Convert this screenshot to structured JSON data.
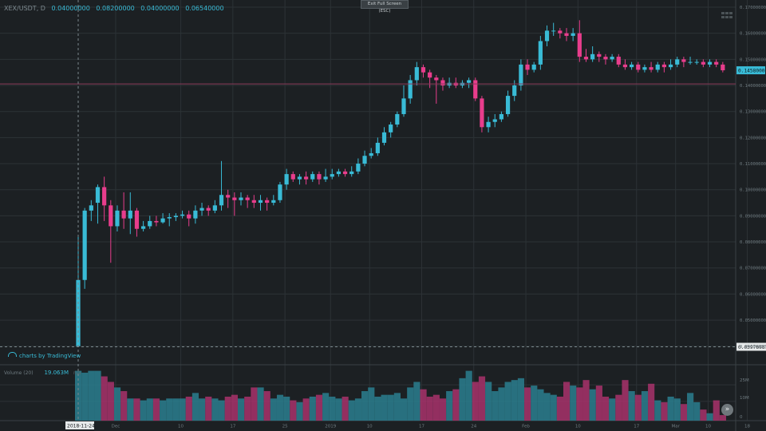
{
  "header": {
    "symbol": "XEX/USDT, D",
    "open": "0.04000000",
    "high": "0.08200000",
    "low": "0.04000000",
    "close": "0.06540000"
  },
  "toolbar": {
    "exit_fullscreen_label": "Exit Full Screen (ESC)"
  },
  "attribution": {
    "text": "charts by TradingView"
  },
  "volume": {
    "label": "Volume (20)",
    "value": "19.063M",
    "na": "n/a"
  },
  "colors": {
    "up": "#39bbd6",
    "down": "#e83d8c",
    "background": "#1c2023",
    "grid": "#2c3236"
  },
  "chart_data": {
    "type": "candlestick",
    "y_ticks": [
      "0.17000000",
      "0.16000000",
      "0.15000000",
      "0.14000000",
      "0.13000000",
      "0.12000000",
      "0.11000000",
      "0.10000000",
      "0.09000000",
      "0.08000000",
      "0.07000000",
      "0.06000000",
      "0.05000000",
      "0.04000000"
    ],
    "ylim": [
      0.0387,
      0.17
    ],
    "x_ticks": [
      "Dec",
      "10",
      "17",
      "25",
      "2019",
      "10",
      "17",
      "24",
      "Feb",
      "10",
      "17",
      "Mar",
      "10",
      "18"
    ],
    "volume_ticks": [
      "25M",
      "10M",
      "0"
    ],
    "last_price_label": "0.14580000",
    "crosshair_price_label": "0.03976987",
    "crosshair_date_label": "2018-11-24",
    "candles": [
      [
        0.04,
        0.0654,
        0.04,
        0.082
      ],
      [
        0.0654,
        0.092,
        0.062,
        0.093
      ],
      [
        0.092,
        0.094,
        0.088,
        0.096
      ],
      [
        0.095,
        0.101,
        0.087,
        0.102
      ],
      [
        0.101,
        0.094,
        0.088,
        0.105
      ],
      [
        0.094,
        0.086,
        0.072,
        0.096
      ],
      [
        0.086,
        0.092,
        0.084,
        0.094
      ],
      [
        0.092,
        0.089,
        0.085,
        0.099
      ],
      [
        0.089,
        0.092,
        0.083,
        0.099
      ],
      [
        0.092,
        0.085,
        0.082,
        0.093
      ],
      [
        0.085,
        0.086,
        0.084,
        0.088
      ],
      [
        0.086,
        0.088,
        0.085,
        0.09
      ],
      [
        0.088,
        0.0875,
        0.086,
        0.09
      ],
      [
        0.0875,
        0.089,
        0.087,
        0.091
      ],
      [
        0.089,
        0.0895,
        0.086,
        0.091
      ],
      [
        0.0895,
        0.09,
        0.088,
        0.091
      ],
      [
        0.09,
        0.0905,
        0.089,
        0.092
      ],
      [
        0.0905,
        0.089,
        0.086,
        0.092
      ],
      [
        0.089,
        0.092,
        0.087,
        0.094
      ],
      [
        0.092,
        0.093,
        0.09,
        0.095
      ],
      [
        0.093,
        0.092,
        0.09,
        0.094
      ],
      [
        0.092,
        0.094,
        0.091,
        0.096
      ],
      [
        0.094,
        0.098,
        0.092,
        0.111
      ],
      [
        0.098,
        0.097,
        0.093,
        0.1
      ],
      [
        0.097,
        0.096,
        0.09,
        0.099
      ],
      [
        0.096,
        0.097,
        0.094,
        0.099
      ],
      [
        0.097,
        0.096,
        0.093,
        0.098
      ],
      [
        0.096,
        0.095,
        0.093,
        0.098
      ],
      [
        0.095,
        0.096,
        0.092,
        0.098
      ],
      [
        0.096,
        0.095,
        0.092,
        0.097
      ],
      [
        0.095,
        0.096,
        0.094,
        0.098
      ],
      [
        0.096,
        0.102,
        0.095,
        0.103
      ],
      [
        0.102,
        0.106,
        0.1,
        0.108
      ],
      [
        0.106,
        0.104,
        0.103,
        0.107
      ],
      [
        0.104,
        0.105,
        0.102,
        0.106
      ],
      [
        0.105,
        0.104,
        0.102,
        0.107
      ],
      [
        0.104,
        0.106,
        0.103,
        0.107
      ],
      [
        0.106,
        0.104,
        0.102,
        0.107
      ],
      [
        0.104,
        0.105,
        0.103,
        0.108
      ],
      [
        0.105,
        0.106,
        0.104,
        0.108
      ],
      [
        0.106,
        0.107,
        0.105,
        0.108
      ],
      [
        0.107,
        0.106,
        0.105,
        0.108
      ],
      [
        0.106,
        0.107,
        0.105,
        0.109
      ],
      [
        0.107,
        0.11,
        0.106,
        0.112
      ],
      [
        0.11,
        0.113,
        0.109,
        0.115
      ],
      [
        0.113,
        0.114,
        0.112,
        0.116
      ],
      [
        0.114,
        0.118,
        0.113,
        0.12
      ],
      [
        0.118,
        0.122,
        0.117,
        0.124
      ],
      [
        0.122,
        0.125,
        0.12,
        0.126
      ],
      [
        0.125,
        0.129,
        0.124,
        0.13
      ],
      [
        0.129,
        0.135,
        0.128,
        0.14
      ],
      [
        0.135,
        0.142,
        0.133,
        0.144
      ],
      [
        0.142,
        0.147,
        0.14,
        0.149
      ],
      [
        0.147,
        0.145,
        0.143,
        0.148
      ],
      [
        0.145,
        0.143,
        0.139,
        0.146
      ],
      [
        0.143,
        0.142,
        0.133,
        0.144
      ],
      [
        0.142,
        0.14,
        0.138,
        0.143
      ],
      [
        0.14,
        0.141,
        0.139,
        0.143
      ],
      [
        0.141,
        0.14,
        0.139,
        0.143
      ],
      [
        0.14,
        0.141,
        0.139,
        0.142
      ],
      [
        0.141,
        0.142,
        0.139,
        0.143
      ],
      [
        0.142,
        0.135,
        0.134,
        0.143
      ],
      [
        0.135,
        0.124,
        0.122,
        0.136
      ],
      [
        0.124,
        0.126,
        0.122,
        0.128
      ],
      [
        0.126,
        0.127,
        0.124,
        0.129
      ],
      [
        0.127,
        0.129,
        0.126,
        0.13
      ],
      [
        0.129,
        0.136,
        0.128,
        0.138
      ],
      [
        0.136,
        0.14,
        0.134,
        0.142
      ],
      [
        0.14,
        0.148,
        0.138,
        0.15
      ],
      [
        0.148,
        0.146,
        0.144,
        0.15
      ],
      [
        0.146,
        0.148,
        0.145,
        0.149
      ],
      [
        0.148,
        0.157,
        0.146,
        0.159
      ],
      [
        0.157,
        0.161,
        0.155,
        0.163
      ],
      [
        0.161,
        0.161,
        0.159,
        0.164
      ],
      [
        0.161,
        0.16,
        0.158,
        0.162
      ],
      [
        0.16,
        0.159,
        0.157,
        0.162
      ],
      [
        0.159,
        0.16,
        0.157,
        0.162
      ],
      [
        0.16,
        0.151,
        0.149,
        0.165
      ],
      [
        0.151,
        0.15,
        0.149,
        0.154
      ],
      [
        0.15,
        0.152,
        0.149,
        0.155
      ],
      [
        0.152,
        0.151,
        0.149,
        0.153
      ],
      [
        0.151,
        0.15,
        0.148,
        0.152
      ],
      [
        0.15,
        0.151,
        0.149,
        0.152
      ],
      [
        0.151,
        0.148,
        0.147,
        0.152
      ],
      [
        0.148,
        0.147,
        0.146,
        0.15
      ],
      [
        0.147,
        0.148,
        0.146,
        0.149
      ],
      [
        0.148,
        0.146,
        0.145,
        0.149
      ],
      [
        0.146,
        0.147,
        0.145,
        0.148
      ],
      [
        0.147,
        0.146,
        0.145,
        0.149
      ],
      [
        0.146,
        0.148,
        0.145,
        0.149
      ],
      [
        0.148,
        0.147,
        0.145,
        0.149
      ],
      [
        0.147,
        0.148,
        0.146,
        0.15
      ],
      [
        0.148,
        0.15,
        0.147,
        0.151
      ],
      [
        0.15,
        0.149,
        0.147,
        0.151
      ],
      [
        0.149,
        0.149,
        0.148,
        0.151
      ],
      [
        0.149,
        0.149,
        0.148,
        0.15
      ],
      [
        0.149,
        0.148,
        0.147,
        0.15
      ],
      [
        0.148,
        0.149,
        0.147,
        0.15
      ],
      [
        0.149,
        0.148,
        0.147,
        0.15
      ],
      [
        0.148,
        0.1458,
        0.145,
        0.149
      ]
    ],
    "volume_millions": [
      27,
      26,
      27,
      27,
      24,
      21,
      18,
      16,
      12,
      12,
      11,
      12,
      12,
      11,
      12,
      12,
      12,
      13,
      15,
      12,
      13,
      12,
      11,
      13,
      14,
      12,
      13,
      18,
      18,
      16,
      12,
      14,
      13,
      11,
      10,
      12,
      13,
      14,
      15,
      13,
      12,
      13,
      11,
      12,
      16,
      18,
      13,
      14,
      14,
      15,
      12,
      18,
      21,
      17,
      13,
      14,
      12,
      16,
      17,
      23,
      27,
      21,
      24,
      21,
      16,
      18,
      21,
      22,
      23,
      18,
      19,
      17,
      15,
      14,
      13,
      21,
      19,
      18,
      22,
      17,
      19,
      13,
      12,
      14,
      22,
      16,
      14,
      16,
      20,
      11,
      10,
      13,
      12,
      9,
      15,
      10,
      6,
      4,
      11,
      3
    ]
  }
}
